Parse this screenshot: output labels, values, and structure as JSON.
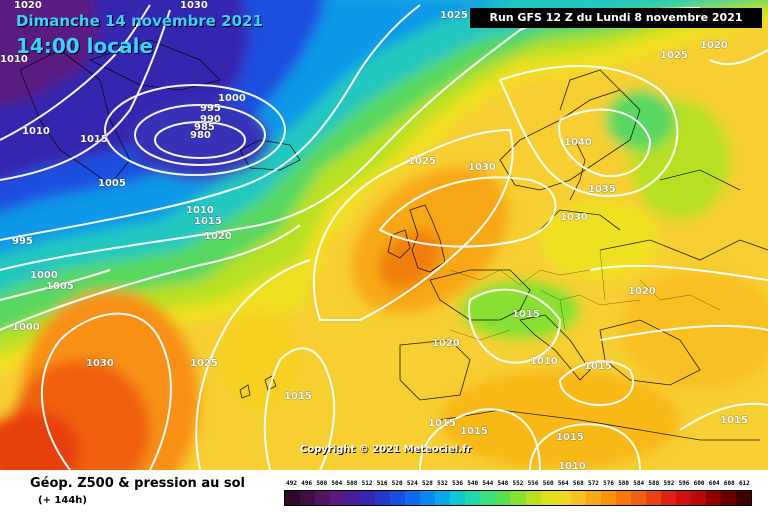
{
  "header": {
    "date": "Dimanche 14 novembre 2021",
    "time": "14:00 locale",
    "run": "Run GFS 12 Z du Lundi 8 novembre 2021"
  },
  "isobars": [
    {
      "label": "1020"
    },
    {
      "label": "1030"
    },
    {
      "label": "1025"
    },
    {
      "label": "1020"
    },
    {
      "label": "1025"
    },
    {
      "label": "1010"
    },
    {
      "label": "1015"
    },
    {
      "label": "1000"
    },
    {
      "label": "995"
    },
    {
      "label": "990"
    },
    {
      "label": "985"
    },
    {
      "label": "980"
    },
    {
      "label": "1005"
    },
    {
      "label": "1010"
    },
    {
      "label": "1010"
    },
    {
      "label": "1015"
    },
    {
      "label": "1020"
    },
    {
      "label": "995"
    },
    {
      "label": "1000"
    },
    {
      "label": "1005"
    },
    {
      "label": "1000"
    },
    {
      "label": "1025"
    },
    {
      "label": "1030"
    },
    {
      "label": "1040"
    },
    {
      "label": "1035"
    },
    {
      "label": "1030"
    },
    {
      "label": "1020"
    },
    {
      "label": "1015"
    },
    {
      "label": "1020"
    },
    {
      "label": "1010"
    },
    {
      "label": "1015"
    },
    {
      "label": "1030"
    },
    {
      "label": "1025"
    },
    {
      "label": "1015"
    },
    {
      "label": "1015"
    },
    {
      "label": "1015"
    },
    {
      "label": "1015"
    },
    {
      "label": "1010"
    },
    {
      "label": "1015"
    }
  ],
  "copyright": "Copyright © 2021 Meteociel.fr",
  "footer": {
    "title": "Géop. Z500 & pression au sol",
    "subtitle": "(+ 144h)"
  },
  "scale": {
    "labels": [
      "492",
      "496",
      "500",
      "504",
      "508",
      "512",
      "516",
      "520",
      "524",
      "528",
      "532",
      "536",
      "540",
      "544",
      "548",
      "552",
      "556",
      "560",
      "564",
      "568",
      "572",
      "576",
      "580",
      "584",
      "588",
      "592",
      "596",
      "600",
      "604",
      "608",
      "612"
    ],
    "colors": [
      "#2b0a2b",
      "#3e0e46",
      "#521566",
      "#5a1a80",
      "#4a1e9a",
      "#3528b0",
      "#2638c8",
      "#1a4ee0",
      "#1068f0",
      "#0a88f0",
      "#08a8e8",
      "#10c8d0",
      "#20d8a8",
      "#38e080",
      "#58e050",
      "#88e030",
      "#b8e020",
      "#e0e018",
      "#f0d820",
      "#f8c020",
      "#f8a818",
      "#f89010",
      "#f87810",
      "#f06010",
      "#e84010",
      "#e02010",
      "#d01010",
      "#b80808",
      "#900000",
      "#680000",
      "#400000"
    ],
    "highlight": "#3ad0ff"
  }
}
